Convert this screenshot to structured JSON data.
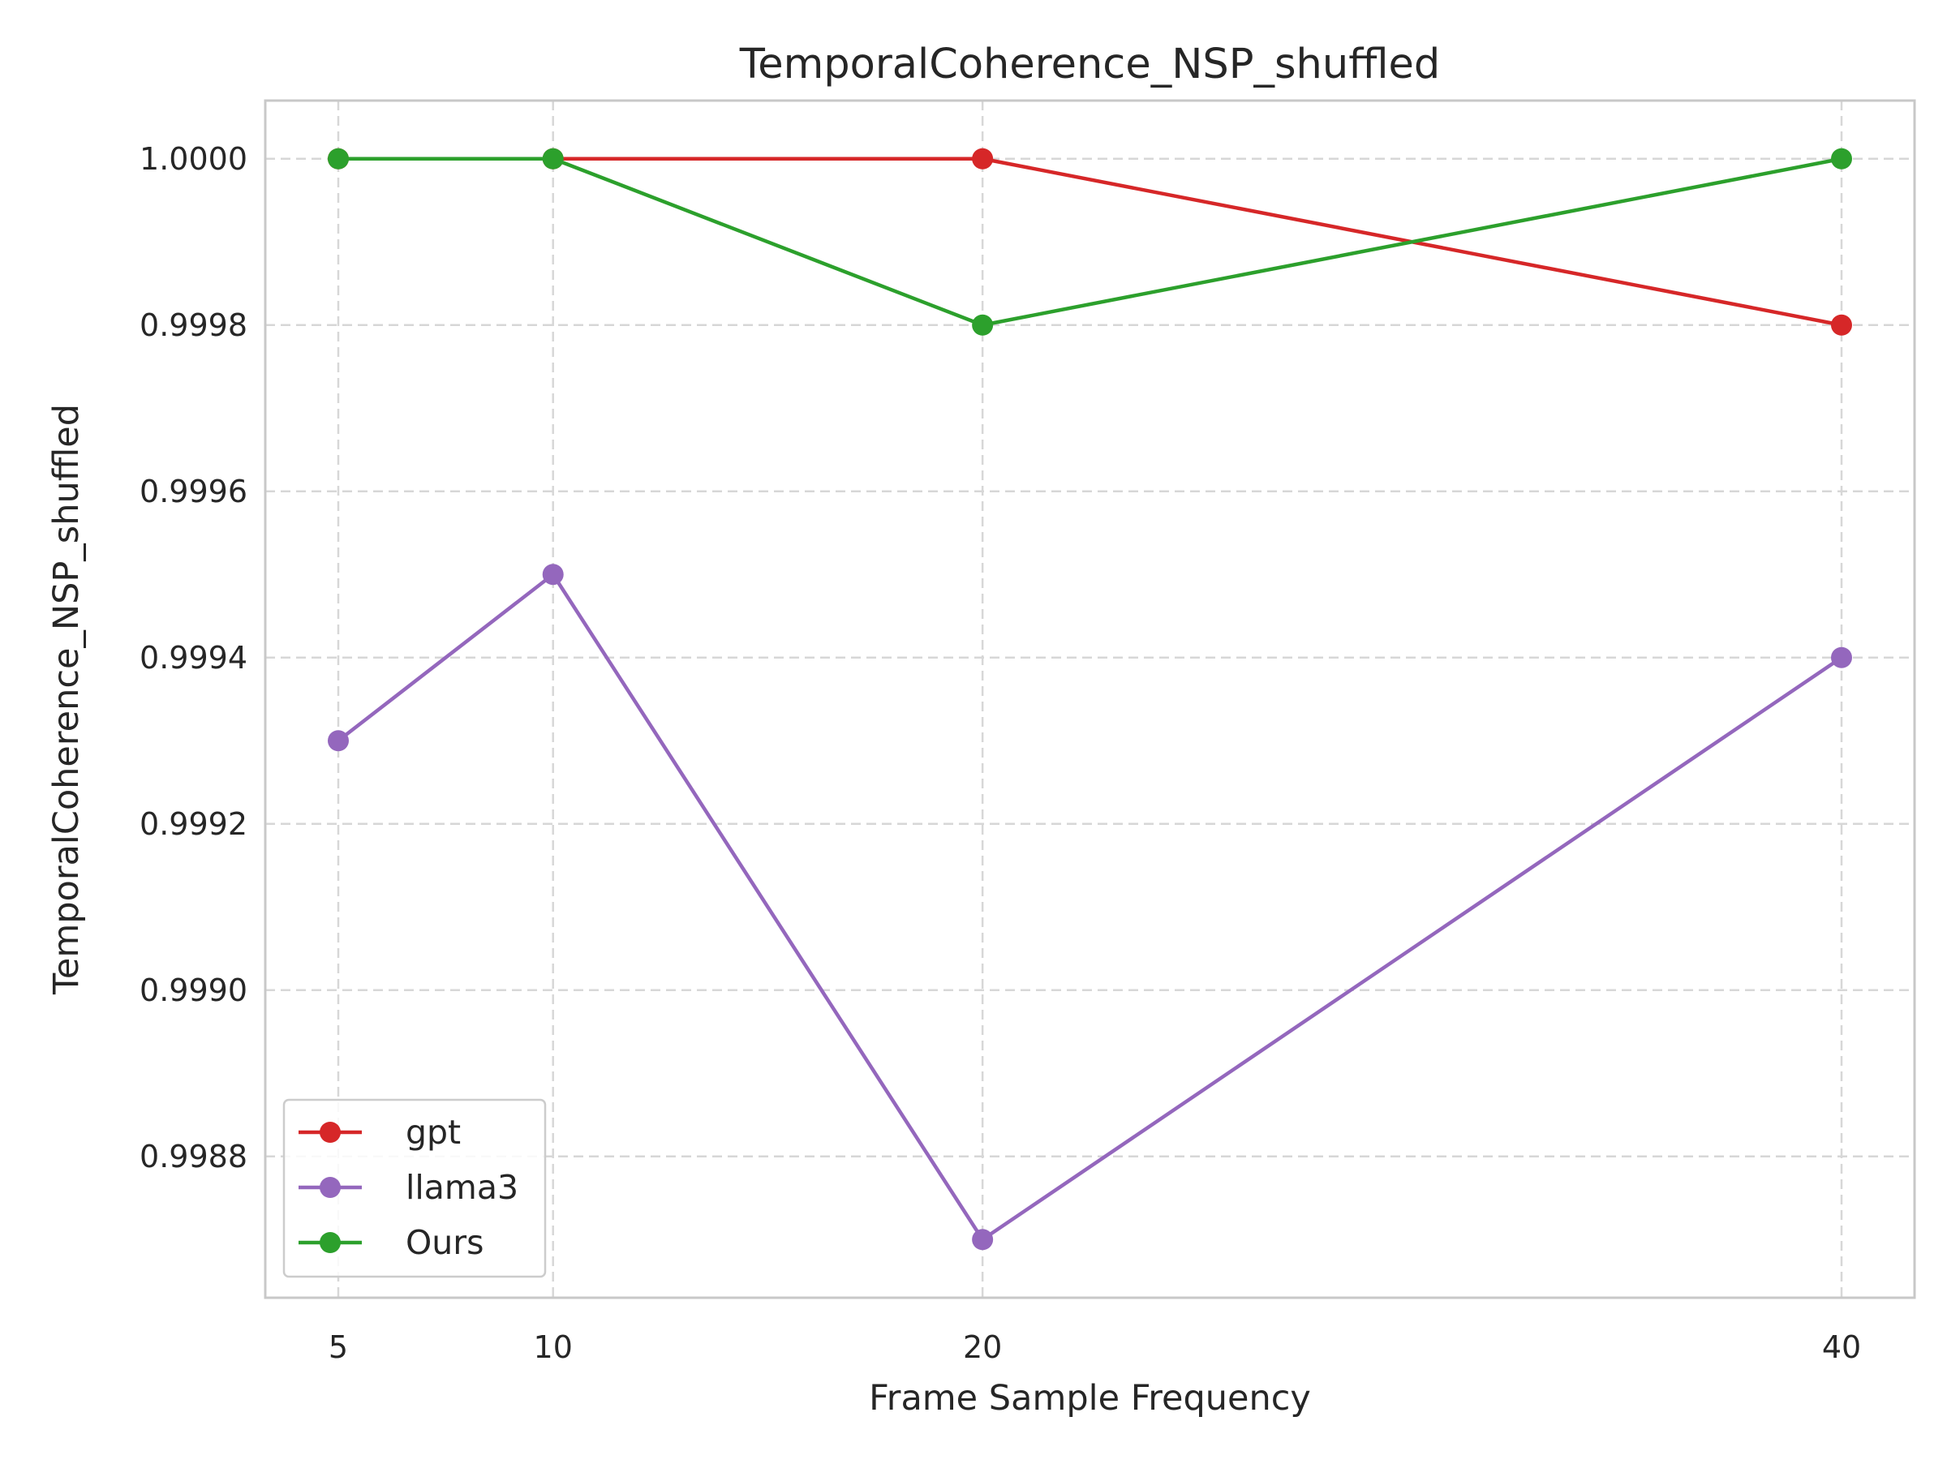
{
  "chart_data": {
    "type": "line",
    "title": "TemporalCoherence_NSP_shuffled",
    "xlabel": "Frame Sample Frequency",
    "ylabel": "TemporalCoherence_NSP_shuffled",
    "x": [
      5,
      10,
      20,
      40
    ],
    "x_ticks": [
      "5",
      "10",
      "20",
      "40"
    ],
    "xlim": [
      3.3,
      41.7
    ],
    "y_ticks": [
      "0.9988",
      "0.9990",
      "0.9992",
      "0.9994",
      "0.9996",
      "0.9998",
      "1.0000"
    ],
    "ylim": [
      0.99863,
      1.00007
    ],
    "grid": true,
    "legend_position": "lower-left",
    "marker": "circle",
    "series": [
      {
        "name": "gpt",
        "color": "#d62728",
        "values": [
          1.0,
          1.0,
          1.0,
          0.9998
        ]
      },
      {
        "name": "llama3",
        "color": "#9467bd",
        "values": [
          0.9993,
          0.9995,
          0.9987,
          0.9994
        ]
      },
      {
        "name": "Ours",
        "color": "#2ca02c",
        "values": [
          1.0,
          1.0,
          0.9998,
          1.0
        ]
      }
    ]
  }
}
